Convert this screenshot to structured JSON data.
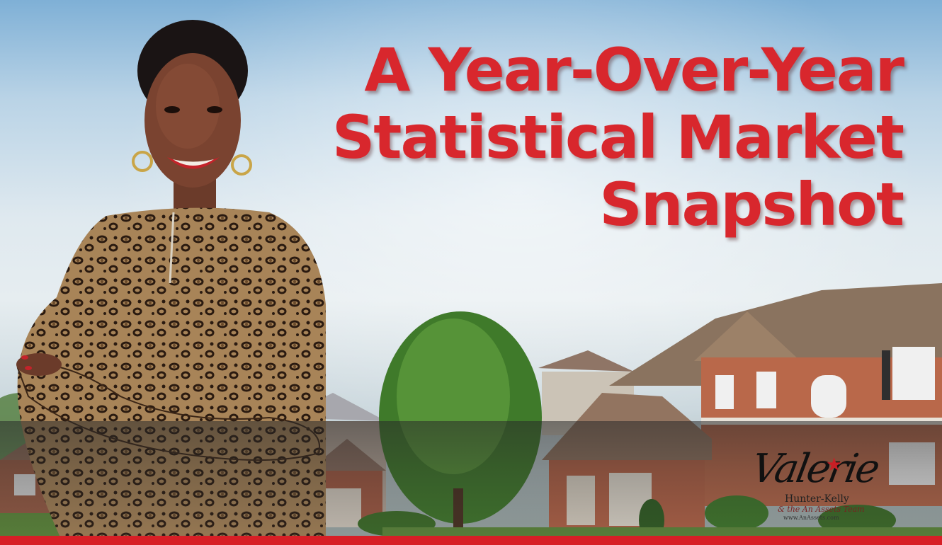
{
  "headline": {
    "line1": "A Year-Over-Year",
    "line2": "Statistical Market",
    "line3": "Snapshot",
    "color": "#d8272d"
  },
  "accent_bar_color": "#d71f26",
  "logo": {
    "script": "Valerie",
    "name": "Hunter-Kelly",
    "team": "& the An Assets Team",
    "website": "www.AnAssets.com"
  }
}
